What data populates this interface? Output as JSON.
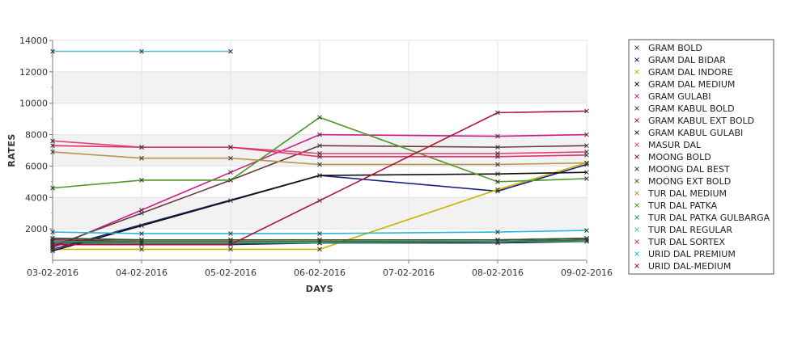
{
  "chart_data": {
    "type": "line",
    "title": "",
    "xlabel": "DAYS",
    "ylabel": "RATES",
    "categories": [
      "03-02-2016",
      "04-02-2016",
      "05-02-2016",
      "06-02-2016",
      "07-02-2016",
      "08-02-2016",
      "09-02-2016"
    ],
    "ylim": [
      0,
      14000
    ],
    "yticks": [
      2000,
      4000,
      6000,
      8000,
      10000,
      12000,
      14000
    ],
    "grid": "alternating horizontal bands",
    "legend_position": "right",
    "series": [
      {
        "name": "GRAM BOLD",
        "color": "#2f4f4f",
        "values": [
          1100,
          1100,
          1100,
          1100,
          null,
          1200,
          1300
        ]
      },
      {
        "name": "GRAM DAL BIDAR",
        "color": "#1a237e",
        "values": [
          700,
          null,
          null,
          5400,
          null,
          4400,
          6100
        ]
      },
      {
        "name": "GRAM DAL INDORE",
        "color": "#c9b400",
        "values": [
          700,
          700,
          700,
          700,
          null,
          4500,
          6200
        ]
      },
      {
        "name": "GRAM DAL MEDIUM",
        "color": "#111111",
        "values": [
          600,
          2200,
          3800,
          5400,
          null,
          5500,
          5600
        ]
      },
      {
        "name": "GRAM GULABI",
        "color": "#cc1f8a",
        "values": [
          800,
          3200,
          5600,
          8000,
          null,
          7900,
          8000
        ]
      },
      {
        "name": "GRAM KABUL BOLD",
        "color": "#6b3a3a",
        "values": [
          900,
          3000,
          5100,
          7300,
          null,
          7200,
          7300
        ]
      },
      {
        "name": "GRAM KABUL EXT BOLD",
        "color": "#a0145a",
        "values": [
          1400,
          1300,
          1300,
          1300,
          null,
          1300,
          1400
        ]
      },
      {
        "name": "GRAM KABUL GULABI",
        "color": "#1b2a4a",
        "values": [
          1000,
          1000,
          1000,
          1100,
          null,
          1100,
          1200
        ]
      },
      {
        "name": "MASUR DAL",
        "color": "#e3417a",
        "values": [
          7600,
          7200,
          7200,
          6800,
          null,
          6800,
          6900
        ]
      },
      {
        "name": "MOONG BOLD",
        "color": "#7a1f2b",
        "values": [
          1300,
          1200,
          1200,
          1200,
          null,
          1200,
          1300
        ]
      },
      {
        "name": "MOONG DAL BEST",
        "color": "#1f5a2e",
        "values": [
          1400,
          1300,
          1300,
          1300,
          null,
          1300,
          1400
        ]
      },
      {
        "name": "MOONG EXT BOLD",
        "color": "#4f6b2a",
        "values": [
          1200,
          1200,
          1200,
          1200,
          null,
          1200,
          1300
        ]
      },
      {
        "name": "TUR DAL MEDIUM",
        "color": "#b8964e",
        "values": [
          6900,
          6500,
          6500,
          6100,
          null,
          6100,
          6200
        ]
      },
      {
        "name": "TUR DAL PATKA",
        "color": "#4d9a2a",
        "values": [
          4600,
          5100,
          5100,
          9100,
          null,
          5000,
          5200
        ]
      },
      {
        "name": "TUR DAL PATKA GULBARGA",
        "color": "#2e8b7a",
        "values": [
          1200,
          1100,
          1100,
          1100,
          null,
          1200,
          1200
        ]
      },
      {
        "name": "TUR DAL REGULAR",
        "color": "#5bc0c8",
        "values": [
          13300,
          13300,
          13300,
          null,
          null,
          null,
          null
        ]
      },
      {
        "name": "TUR DAL SORTEX",
        "color": "#e0306a",
        "values": [
          7300,
          7200,
          7200,
          6600,
          null,
          6600,
          6700
        ]
      },
      {
        "name": "URID DAL PREMIUM",
        "color": "#2ab6d8",
        "values": [
          1800,
          1700,
          1700,
          1700,
          null,
          1800,
          1900
        ]
      },
      {
        "name": "URID DAL-MEDIUM",
        "color": "#b01230",
        "values": [
          1000,
          1000,
          1000,
          3800,
          null,
          9400,
          9500
        ]
      }
    ]
  }
}
